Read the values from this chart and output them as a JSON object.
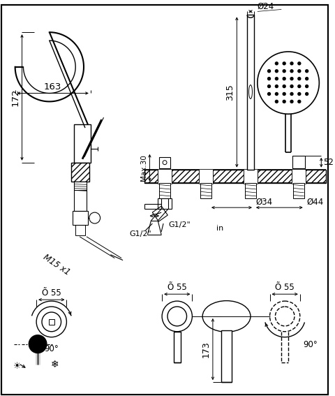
{
  "bg_color": "#ffffff",
  "lc": "#000000",
  "fig_width": 4.8,
  "fig_height": 5.67,
  "dpi": 100,
  "border": [
    2,
    2,
    476,
    563
  ],
  "dims": {
    "163": "163",
    "172": "172",
    "24": "Ø24",
    "315": "315",
    "max30": "Max.30",
    "52": "52",
    "34": "Ø34",
    "44": "Ø44",
    "g12a": "G1/2\"",
    "g12b": "G1/2\"",
    "in": "in",
    "55a": "Õ 55",
    "55b": "Õ 55",
    "173": "173",
    "90a": "90°",
    "90b": "90°",
    "m15": "M15 x1"
  }
}
